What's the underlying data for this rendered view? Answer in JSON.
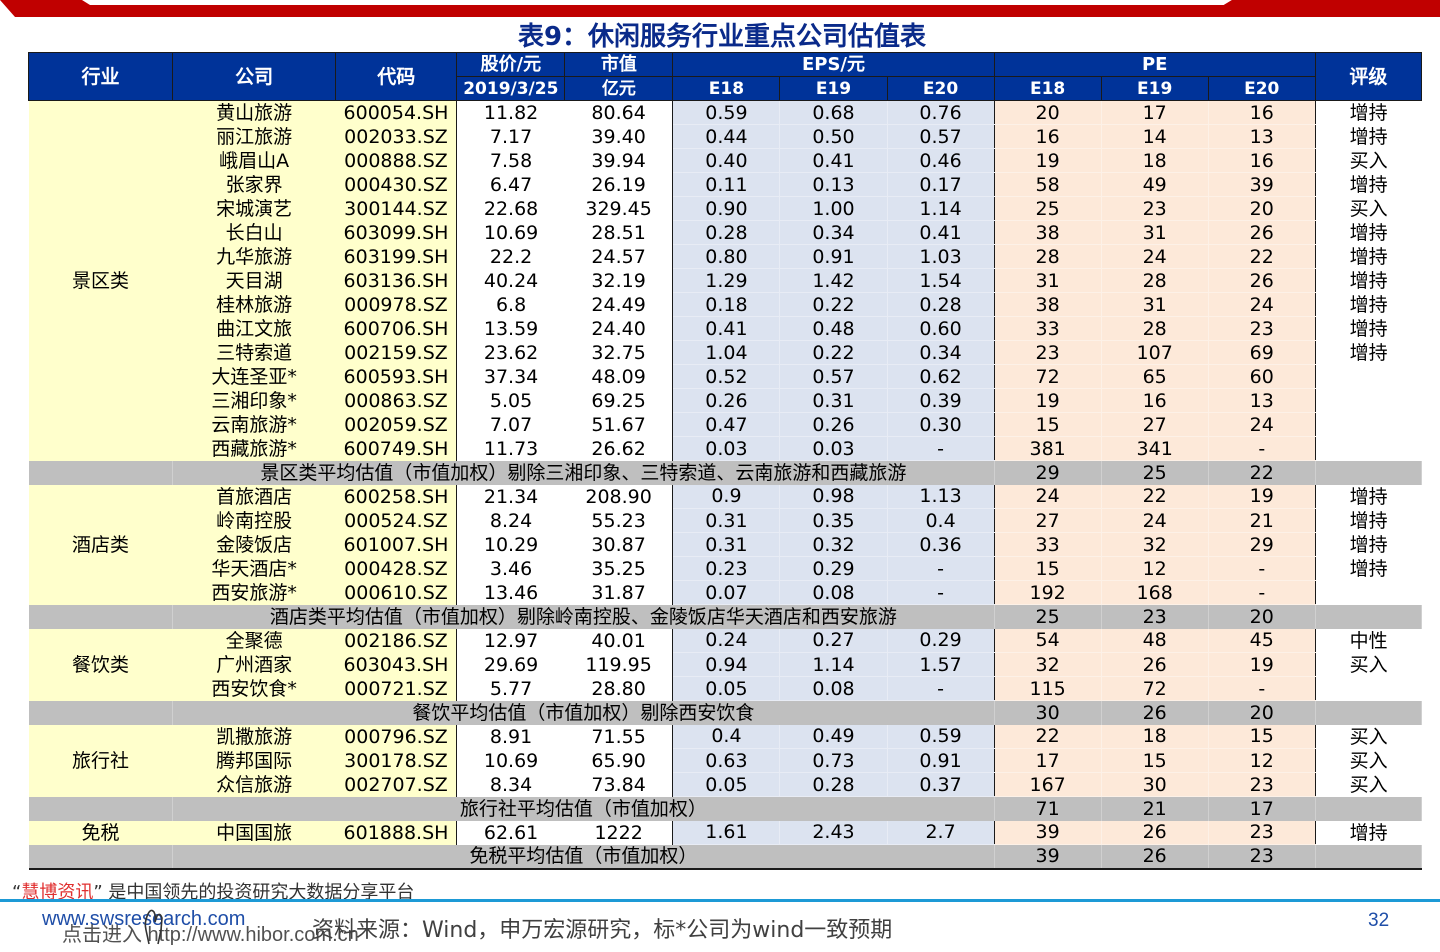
{
  "page": {
    "title": "表9：休闲服务行业重点公司估值表",
    "page_number": "32",
    "colors": {
      "banner_red": "#c00000",
      "header_blue": "#003399",
      "title_blue": "#0a2a8a",
      "company_bg": "#ffffcc",
      "eps_bg": "#dce3f0",
      "pe_bg": "#fde9d9",
      "avg_bg": "#bfbfbf",
      "footer_rule": "#1d9ad6"
    }
  },
  "table": {
    "headers": {
      "industry": "行业",
      "company": "公司",
      "code": "代码",
      "price": "股价/元",
      "price_date": "2019/3/25",
      "market_cap": "市值",
      "market_cap_unit": "亿元",
      "eps": "EPS/元",
      "pe": "PE",
      "rating": "评级",
      "years": [
        "E18",
        "E19",
        "E20"
      ]
    },
    "groups": [
      {
        "industry": "景区类",
        "rows": [
          {
            "company": "黄山旅游",
            "code": "600054.SH",
            "price": "11.82",
            "mcap": "80.64",
            "eps": [
              "0.59",
              "0.68",
              "0.76"
            ],
            "pe": [
              "20",
              "17",
              "16"
            ],
            "rating": "增持"
          },
          {
            "company": "丽江旅游",
            "code": "002033.SZ",
            "price": "7.17",
            "mcap": "39.40",
            "eps": [
              "0.44",
              "0.50",
              "0.57"
            ],
            "pe": [
              "16",
              "14",
              "13"
            ],
            "rating": "增持"
          },
          {
            "company": "峨眉山A",
            "code": "000888.SZ",
            "price": "7.58",
            "mcap": "39.94",
            "eps": [
              "0.40",
              "0.41",
              "0.46"
            ],
            "pe": [
              "19",
              "18",
              "16"
            ],
            "rating": "买入"
          },
          {
            "company": "张家界",
            "code": "000430.SZ",
            "price": "6.47",
            "mcap": "26.19",
            "eps": [
              "0.11",
              "0.13",
              "0.17"
            ],
            "pe": [
              "58",
              "49",
              "39"
            ],
            "rating": "增持"
          },
          {
            "company": "宋城演艺",
            "code": "300144.SZ",
            "price": "22.68",
            "mcap": "329.45",
            "eps": [
              "0.90",
              "1.00",
              "1.14"
            ],
            "pe": [
              "25",
              "23",
              "20"
            ],
            "rating": "买入"
          },
          {
            "company": "长白山",
            "code": "603099.SH",
            "price": "10.69",
            "mcap": "28.51",
            "eps": [
              "0.28",
              "0.34",
              "0.41"
            ],
            "pe": [
              "38",
              "31",
              "26"
            ],
            "rating": "增持"
          },
          {
            "company": "九华旅游",
            "code": "603199.SH",
            "price": "22.2",
            "mcap": "24.57",
            "eps": [
              "0.80",
              "0.91",
              "1.03"
            ],
            "pe": [
              "28",
              "24",
              "22"
            ],
            "rating": "增持"
          },
          {
            "company": "天目湖",
            "code": "603136.SH",
            "price": "40.24",
            "mcap": "32.19",
            "eps": [
              "1.29",
              "1.42",
              "1.54"
            ],
            "pe": [
              "31",
              "28",
              "26"
            ],
            "rating": "增持"
          },
          {
            "company": "桂林旅游",
            "code": "000978.SZ",
            "price": "6.8",
            "mcap": "24.49",
            "eps": [
              "0.18",
              "0.22",
              "0.28"
            ],
            "pe": [
              "38",
              "31",
              "24"
            ],
            "rating": "增持"
          },
          {
            "company": "曲江文旅",
            "code": "600706.SH",
            "price": "13.59",
            "mcap": "24.40",
            "eps": [
              "0.41",
              "0.48",
              "0.60"
            ],
            "pe": [
              "33",
              "28",
              "23"
            ],
            "rating": "增持"
          },
          {
            "company": "三特索道",
            "code": "002159.SZ",
            "price": "23.62",
            "mcap": "32.75",
            "eps": [
              "1.04",
              "0.22",
              "0.34"
            ],
            "pe": [
              "23",
              "107",
              "69"
            ],
            "rating": "增持"
          },
          {
            "company": "大连圣亚*",
            "code": "600593.SH",
            "price": "37.34",
            "mcap": "48.09",
            "eps": [
              "0.52",
              "0.57",
              "0.62"
            ],
            "pe": [
              "72",
              "65",
              "60"
            ],
            "rating": ""
          },
          {
            "company": "三湘印象*",
            "code": "000863.SZ",
            "price": "5.05",
            "mcap": "69.25",
            "eps": [
              "0.26",
              "0.31",
              "0.39"
            ],
            "pe": [
              "19",
              "16",
              "13"
            ],
            "rating": ""
          },
          {
            "company": "云南旅游*",
            "code": "002059.SZ",
            "price": "7.07",
            "mcap": "51.67",
            "eps": [
              "0.47",
              "0.26",
              "0.30"
            ],
            "pe": [
              "15",
              "27",
              "24"
            ],
            "rating": ""
          },
          {
            "company": "西藏旅游*",
            "code": "600749.SH",
            "price": "11.73",
            "mcap": "26.62",
            "eps": [
              "0.03",
              "0.03",
              "-"
            ],
            "pe": [
              "381",
              "341",
              "-"
            ],
            "rating": ""
          }
        ],
        "average": {
          "label": "景区类平均估值（市值加权）剔除三湘印象、三特索道、云南旅游和西藏旅游",
          "pe": [
            "29",
            "25",
            "22"
          ]
        }
      },
      {
        "industry": "酒店类",
        "rows": [
          {
            "company": "首旅酒店",
            "code": "600258.SH",
            "price": "21.34",
            "mcap": "208.90",
            "eps": [
              "0.9",
              "0.98",
              "1.13"
            ],
            "pe": [
              "24",
              "22",
              "19"
            ],
            "rating": "增持"
          },
          {
            "company": "岭南控股",
            "code": "000524.SZ",
            "price": "8.24",
            "mcap": "55.23",
            "eps": [
              "0.31",
              "0.35",
              "0.4"
            ],
            "pe": [
              "27",
              "24",
              "21"
            ],
            "rating": "增持"
          },
          {
            "company": "金陵饭店",
            "code": "601007.SH",
            "price": "10.29",
            "mcap": "30.87",
            "eps": [
              "0.31",
              "0.32",
              "0.36"
            ],
            "pe": [
              "33",
              "32",
              "29"
            ],
            "rating": "增持"
          },
          {
            "company": "华天酒店*",
            "code": "000428.SZ",
            "price": "3.46",
            "mcap": "35.25",
            "eps": [
              "0.23",
              "0.29",
              "-"
            ],
            "pe": [
              "15",
              "12",
              "-"
            ],
            "rating": "增持"
          },
          {
            "company": "西安旅游*",
            "code": "000610.SZ",
            "price": "13.46",
            "mcap": "31.87",
            "eps": [
              "0.07",
              "0.08",
              "-"
            ],
            "pe": [
              "192",
              "168",
              "-"
            ],
            "rating": ""
          }
        ],
        "average": {
          "label": "酒店类平均估值（市值加权）剔除岭南控股、金陵饭店华天酒店和西安旅游",
          "pe": [
            "25",
            "23",
            "20"
          ]
        }
      },
      {
        "industry": "餐饮类",
        "rows": [
          {
            "company": "全聚德",
            "code": "002186.SZ",
            "price": "12.97",
            "mcap": "40.01",
            "eps": [
              "0.24",
              "0.27",
              "0.29"
            ],
            "pe": [
              "54",
              "48",
              "45"
            ],
            "rating": "中性"
          },
          {
            "company": "广州酒家",
            "code": "603043.SH",
            "price": "29.69",
            "mcap": "119.95",
            "eps": [
              "0.94",
              "1.14",
              "1.57"
            ],
            "pe": [
              "32",
              "26",
              "19"
            ],
            "rating": "买入"
          },
          {
            "company": "西安饮食*",
            "code": "000721.SZ",
            "price": "5.77",
            "mcap": "28.80",
            "eps": [
              "0.05",
              "0.08",
              "-"
            ],
            "pe": [
              "115",
              "72",
              "-"
            ],
            "rating": ""
          }
        ],
        "average": {
          "label": "餐饮平均估值（市值加权）剔除西安饮食",
          "pe": [
            "30",
            "26",
            "20"
          ]
        }
      },
      {
        "industry": "旅行社",
        "rows": [
          {
            "company": "凯撒旅游",
            "code": "000796.SZ",
            "price": "8.91",
            "mcap": "71.55",
            "eps": [
              "0.4",
              "0.49",
              "0.59"
            ],
            "pe": [
              "22",
              "18",
              "15"
            ],
            "rating": "买入"
          },
          {
            "company": "腾邦国际",
            "code": "300178.SZ",
            "price": "10.69",
            "mcap": "65.90",
            "eps": [
              "0.63",
              "0.73",
              "0.91"
            ],
            "pe": [
              "17",
              "15",
              "12"
            ],
            "rating": "买入"
          },
          {
            "company": "众信旅游",
            "code": "002707.SZ",
            "price": "8.34",
            "mcap": "73.84",
            "eps": [
              "0.05",
              "0.28",
              "0.37"
            ],
            "pe": [
              "167",
              "30",
              "23"
            ],
            "rating": "买入"
          }
        ],
        "average": {
          "label": "旅行社平均估值（市值加权）",
          "pe": [
            "71",
            "21",
            "17"
          ]
        }
      },
      {
        "industry": "免税",
        "rows": [
          {
            "company": "中国国旅",
            "code": "601888.SH",
            "price": "62.61",
            "mcap": "1222",
            "eps": [
              "1.61",
              "2.43",
              "2.7"
            ],
            "pe": [
              "39",
              "26",
              "23"
            ],
            "rating": "增持"
          }
        ],
        "average": {
          "label": "免税平均估值（市值加权）",
          "pe": [
            "39",
            "26",
            "23"
          ]
        }
      }
    ]
  },
  "footer": {
    "promo_quote_open": "“",
    "promo_brand": "慧博资讯",
    "promo_rest": "” 是中国领先的投资研究大数据分享平台",
    "url": "www.swsresearch.com",
    "overlay_text": "点击进入 http://www.hibor.com.cn",
    "source_note": "资料来源：Wind，申万宏源研究，标*公司为wind一致预期",
    "page_number": "32"
  }
}
